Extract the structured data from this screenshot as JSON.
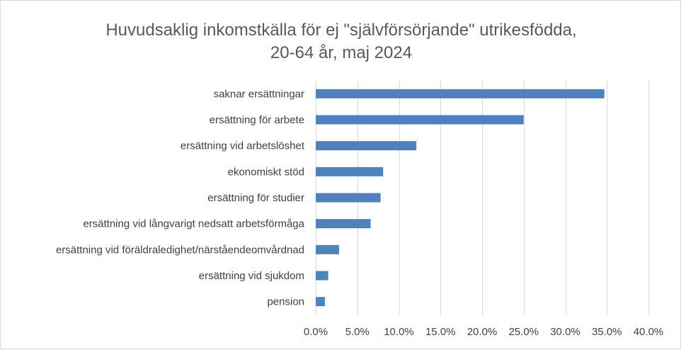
{
  "chart_data": {
    "type": "bar",
    "orientation": "horizontal",
    "title": "Huvudsaklig inkomstkälla för ej \"självförsörjande\" utrikesfödda, 20-64 år, maj 2024",
    "title_lines": [
      "Huvudsaklig inkomstkälla för ej \"självförsörjande\" utrikesfödda,",
      "20-64 år, maj 2024"
    ],
    "categories": [
      "saknar ersättningar",
      "ersättning för arbete",
      "ersättning vid arbetslöshet",
      "ekonomiskt stöd",
      "ersättning för studier",
      "ersättning vid långvarigt nedsatt arbetsförmåga",
      "ersättning vid föräldraledighet/närståendeomvårdnad",
      "ersättning vid sjukdom",
      "pension"
    ],
    "values": [
      34.7,
      25.0,
      12.1,
      8.1,
      7.8,
      6.6,
      2.8,
      1.5,
      1.1
    ],
    "xlim": [
      0,
      40
    ],
    "xticks": [
      0,
      5,
      10,
      15,
      20,
      25,
      30,
      35,
      40
    ],
    "xtick_labels": [
      "0.0%",
      "5.0%",
      "10.0%",
      "15.0%",
      "20.0%",
      "25.0%",
      "30.0%",
      "35.0%",
      "40.0%"
    ],
    "xlabel": "",
    "ylabel": "",
    "grid": "vertical",
    "legend": "none",
    "bar_color": "#4f81bd"
  }
}
